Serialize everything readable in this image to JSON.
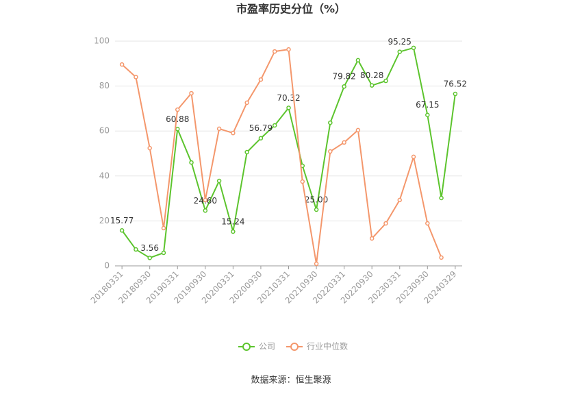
{
  "chart_data": {
    "type": "line",
    "title": "市盈率历史分位（%）",
    "source": "数据来源：恒生聚源",
    "categories": [
      "20180331",
      null,
      "20180930",
      null,
      "20190331",
      null,
      "20190930",
      null,
      "20200331",
      null,
      "20200930",
      null,
      "20210331",
      null,
      "20210930",
      null,
      "20220331",
      null,
      "20220930",
      null,
      "20230331",
      null,
      "20230930",
      null,
      "20240329"
    ],
    "series": [
      {
        "name": "公司",
        "color": "#5cc42d",
        "values": [
          15.77,
          7.3,
          3.56,
          5.8,
          60.88,
          46,
          24.6,
          37.8,
          15.24,
          50.6,
          56.79,
          62.5,
          70.32,
          44.5,
          25.0,
          63.7,
          79.82,
          91.5,
          80.28,
          82.3,
          95.25,
          97,
          67.15,
          30.2,
          76.52
        ],
        "value_labels": [
          "15.77",
          null,
          "3.56",
          null,
          "60.88",
          null,
          "24.60",
          null,
          "15.24",
          null,
          "56.79",
          null,
          "70.32",
          null,
          "25.00",
          null,
          "79.82",
          null,
          "80.28",
          null,
          "95.25",
          null,
          "67.15",
          null,
          "76.52"
        ]
      },
      {
        "name": "行业中位数",
        "color": "#f4976c",
        "values": [
          89.6,
          84,
          52.4,
          16.8,
          69.5,
          76.8,
          29.3,
          61,
          59.1,
          72.6,
          82.9,
          95.4,
          96.3,
          37.5,
          0.9,
          50.9,
          54.9,
          60.4,
          12.2,
          18.9,
          29.3,
          48.5,
          18.9,
          3.7,
          null
        ]
      }
    ],
    "ylim": [
      0,
      100
    ],
    "yticks": [
      0,
      20,
      40,
      60,
      80,
      100
    ],
    "grid": true,
    "legend": "bottom"
  }
}
